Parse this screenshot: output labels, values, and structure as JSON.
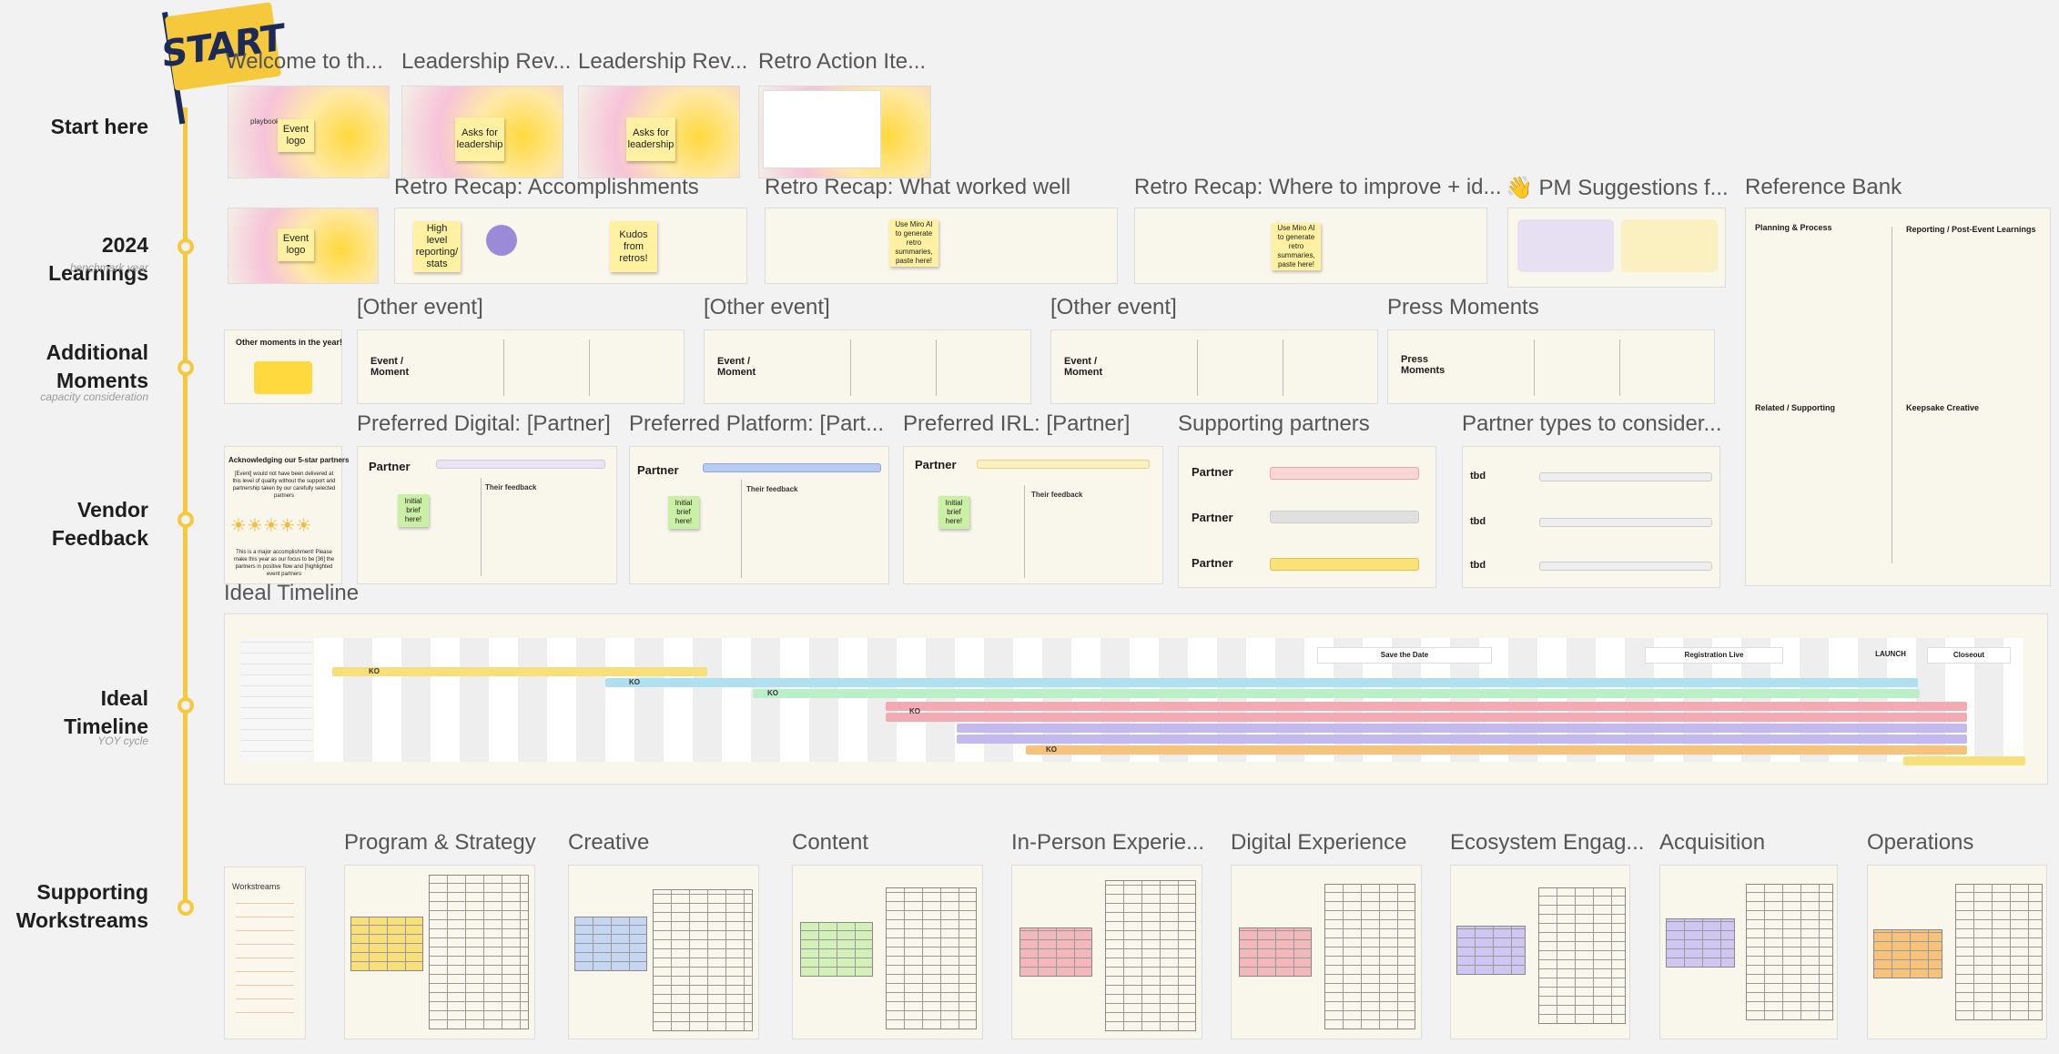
{
  "start_flag": {
    "text": "START"
  },
  "lanes": [
    {
      "label": "Start here",
      "sub": ""
    },
    {
      "label": "2024 Learnings",
      "sub": "benchmark year"
    },
    {
      "label": "Additional Moments",
      "sub": "capacity consideration"
    },
    {
      "label": "Vendor Feedback",
      "sub": ""
    },
    {
      "label": "Ideal Timeline",
      "sub": "YOY cycle"
    },
    {
      "label": "Supporting Workstreams",
      "sub": ""
    }
  ],
  "frames": {
    "welcome": "Welcome to th...",
    "leadership1": "Leadership Rev...",
    "leadership2": "Leadership Rev...",
    "retro_items": "Retro Action Ite...",
    "accomplishments": "Retro Recap: Accomplishments",
    "worked_well": "Retro Recap: What worked well",
    "improve": "Retro Recap: Where to improve + id...",
    "pm_suggestions": "👋 PM Suggestions f...",
    "reference_bank": "Reference Bank",
    "other1": "[Other event]",
    "other2": "[Other event]",
    "other3": "[Other event]",
    "press": "Press Moments",
    "pref_digital": "Preferred Digital: [Partner]",
    "pref_platform": "Preferred Platform: [Part...",
    "pref_irl": "Preferred IRL: [Partner]",
    "supporting": "Supporting partners",
    "partner_types": "Partner types to consider...",
    "ideal_timeline": "Ideal Timeline",
    "ws_program": "Program & Strategy",
    "ws_creative": "Creative",
    "ws_content": "Content",
    "ws_inperson": "In-Person Experie...",
    "ws_digital": "Digital Experience",
    "ws_ecosystem": "Ecosystem Engag...",
    "ws_acquisition": "Acquisition",
    "ws_operations": "Operations"
  },
  "content": {
    "playbook": "playbook",
    "event_logo": "Event logo",
    "asks": "Asks for leadership",
    "high_level": "High level reporting/ stats",
    "kudos": "Kudos from retros!",
    "use_miro": "Use Miro AI to generate retro summaries, paste here!",
    "ref_planning": "Planning & Process",
    "ref_reporting": "Reporting / Post-Event Learnings",
    "ref_related": "Related / Supporting",
    "ref_keepsake": "Keepsake Creative",
    "other_moments": "Other moments in the year!",
    "event_moment": "Event / Moment",
    "press_moments": "Press Moments",
    "ack_title": "Acknowledging our 5-star partners",
    "ack_body": "[Event] would not have been delivered at this level of quality without the support and partnership taken by our carefully selected partners",
    "ack_foot": "This is a major accomplishment! Please make this year as our focus to be [36] the partners in positive flow and [highlighted event partners",
    "partner": "Partner",
    "initial_brief": "Initial brief here!",
    "their_feedback": "Their feedback",
    "tbd": "tbd",
    "workstreams": "Workstreams",
    "save_date": "Save the Date",
    "registration": "Registration Live",
    "launch": "LAUNCH",
    "closeout": "Closeout",
    "ko": "KO"
  },
  "colors": {
    "rail": "#f6c83b",
    "yellow": "#f7e07a",
    "blue": "#aee0f2",
    "green": "#b9f0c8",
    "red": "#f3aab2",
    "purple": "#c4b8f0",
    "orange": "#f7c27a"
  }
}
